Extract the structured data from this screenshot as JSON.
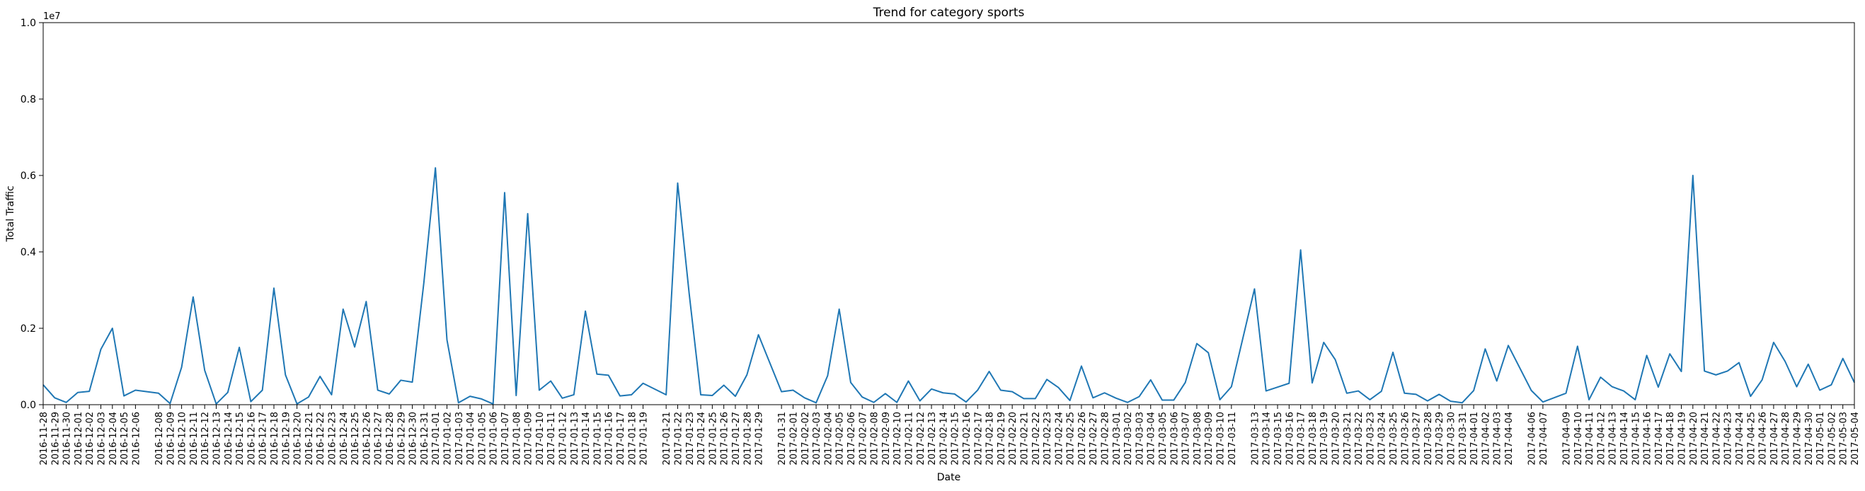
{
  "chart_data": {
    "type": "line",
    "title": "Trend for category sports",
    "xlabel": "Date",
    "ylabel": "Total Traffic",
    "y_multiplier_label": "1e7",
    "ylim": [
      0,
      10000000
    ],
    "y_ticks": [
      0,
      2000000,
      4000000,
      6000000,
      8000000,
      10000000
    ],
    "y_tick_labels": [
      "0.0",
      "0.2",
      "0.4",
      "0.6",
      "0.8",
      "1.0"
    ],
    "grid": false,
    "series": [
      {
        "color": "#1f77b4",
        "points": [
          [
            "2016-11-28",
            520000
          ],
          [
            "2016-11-29",
            180000
          ],
          [
            "2016-11-30",
            60000
          ],
          [
            "2016-12-01",
            320000
          ],
          [
            "2016-12-02",
            350000
          ],
          [
            "2016-12-03",
            1450000
          ],
          [
            "2016-12-04",
            2000000
          ],
          [
            "2016-12-05",
            230000
          ],
          [
            "2016-12-06",
            380000
          ],
          [
            "2016-12-08",
            300000
          ],
          [
            "2016-12-09",
            30000
          ],
          [
            "2016-12-10",
            980000
          ],
          [
            "2016-12-11",
            2820000
          ],
          [
            "2016-12-12",
            900000
          ],
          [
            "2016-12-13",
            20000
          ],
          [
            "2016-12-14",
            320000
          ],
          [
            "2016-12-15",
            1500000
          ],
          [
            "2016-12-16",
            80000
          ],
          [
            "2016-12-17",
            380000
          ],
          [
            "2016-12-18",
            3050000
          ],
          [
            "2016-12-19",
            780000
          ],
          [
            "2016-12-20",
            20000
          ],
          [
            "2016-12-21",
            200000
          ],
          [
            "2016-12-22",
            740000
          ],
          [
            "2016-12-23",
            260000
          ],
          [
            "2016-12-24",
            2500000
          ],
          [
            "2016-12-25",
            1510000
          ],
          [
            "2016-12-26",
            2700000
          ],
          [
            "2016-12-27",
            380000
          ],
          [
            "2016-12-28",
            280000
          ],
          [
            "2016-12-29",
            640000
          ],
          [
            "2016-12-30",
            590000
          ],
          [
            "2016-12-31",
            3200000
          ],
          [
            "2017-01-01",
            6200000
          ],
          [
            "2017-01-02",
            1700000
          ],
          [
            "2017-01-03",
            50000
          ],
          [
            "2017-01-04",
            220000
          ],
          [
            "2017-01-05",
            150000
          ],
          [
            "2017-01-06",
            20000
          ],
          [
            "2017-01-07",
            5550000
          ],
          [
            "2017-01-08",
            240000
          ],
          [
            "2017-01-09",
            5000000
          ],
          [
            "2017-01-10",
            380000
          ],
          [
            "2017-01-11",
            620000
          ],
          [
            "2017-01-12",
            170000
          ],
          [
            "2017-01-13",
            260000
          ],
          [
            "2017-01-14",
            2450000
          ],
          [
            "2017-01-15",
            800000
          ],
          [
            "2017-01-16",
            770000
          ],
          [
            "2017-01-17",
            230000
          ],
          [
            "2017-01-18",
            260000
          ],
          [
            "2017-01-19",
            560000
          ],
          [
            "2017-01-21",
            260000
          ],
          [
            "2017-01-22",
            5800000
          ],
          [
            "2017-01-23",
            2900000
          ],
          [
            "2017-01-24",
            260000
          ],
          [
            "2017-01-25",
            240000
          ],
          [
            "2017-01-26",
            510000
          ],
          [
            "2017-01-27",
            220000
          ],
          [
            "2017-01-28",
            780000
          ],
          [
            "2017-01-29",
            1830000
          ],
          [
            "2017-01-31",
            340000
          ],
          [
            "2017-02-01",
            380000
          ],
          [
            "2017-02-02",
            180000
          ],
          [
            "2017-02-03",
            50000
          ],
          [
            "2017-02-04",
            760000
          ],
          [
            "2017-02-05",
            2500000
          ],
          [
            "2017-02-06",
            580000
          ],
          [
            "2017-02-07",
            200000
          ],
          [
            "2017-02-08",
            60000
          ],
          [
            "2017-02-09",
            290000
          ],
          [
            "2017-02-10",
            60000
          ],
          [
            "2017-02-11",
            620000
          ],
          [
            "2017-02-12",
            100000
          ],
          [
            "2017-02-13",
            410000
          ],
          [
            "2017-02-14",
            310000
          ],
          [
            "2017-02-15",
            280000
          ],
          [
            "2017-02-16",
            70000
          ],
          [
            "2017-02-17",
            380000
          ],
          [
            "2017-02-18",
            870000
          ],
          [
            "2017-02-19",
            380000
          ],
          [
            "2017-02-20",
            340000
          ],
          [
            "2017-02-21",
            160000
          ],
          [
            "2017-02-22",
            160000
          ],
          [
            "2017-02-23",
            660000
          ],
          [
            "2017-02-24",
            450000
          ],
          [
            "2017-02-25",
            110000
          ],
          [
            "2017-02-26",
            1010000
          ],
          [
            "2017-02-27",
            180000
          ],
          [
            "2017-02-28",
            310000
          ],
          [
            "2017-03-01",
            170000
          ],
          [
            "2017-03-02",
            60000
          ],
          [
            "2017-03-03",
            210000
          ],
          [
            "2017-03-04",
            650000
          ],
          [
            "2017-03-05",
            120000
          ],
          [
            "2017-03-06",
            120000
          ],
          [
            "2017-03-07",
            580000
          ],
          [
            "2017-03-08",
            1600000
          ],
          [
            "2017-03-09",
            1360000
          ],
          [
            "2017-03-10",
            130000
          ],
          [
            "2017-03-11",
            470000
          ],
          [
            "2017-03-13",
            3030000
          ],
          [
            "2017-03-14",
            360000
          ],
          [
            "2017-03-15",
            460000
          ],
          [
            "2017-03-16",
            560000
          ],
          [
            "2017-03-17",
            4050000
          ],
          [
            "2017-03-18",
            570000
          ],
          [
            "2017-03-19",
            1630000
          ],
          [
            "2017-03-20",
            1180000
          ],
          [
            "2017-03-21",
            300000
          ],
          [
            "2017-03-22",
            360000
          ],
          [
            "2017-03-23",
            130000
          ],
          [
            "2017-03-24",
            350000
          ],
          [
            "2017-03-25",
            1370000
          ],
          [
            "2017-03-26",
            300000
          ],
          [
            "2017-03-27",
            270000
          ],
          [
            "2017-03-28",
            100000
          ],
          [
            "2017-03-29",
            270000
          ],
          [
            "2017-03-30",
            90000
          ],
          [
            "2017-03-31",
            50000
          ],
          [
            "2017-04-01",
            370000
          ],
          [
            "2017-04-02",
            1460000
          ],
          [
            "2017-04-03",
            620000
          ],
          [
            "2017-04-04",
            1550000
          ],
          [
            "2017-04-06",
            370000
          ],
          [
            "2017-04-07",
            70000
          ],
          [
            "2017-04-09",
            300000
          ],
          [
            "2017-04-10",
            1530000
          ],
          [
            "2017-04-11",
            130000
          ],
          [
            "2017-04-12",
            720000
          ],
          [
            "2017-04-13",
            470000
          ],
          [
            "2017-04-14",
            360000
          ],
          [
            "2017-04-15",
            130000
          ],
          [
            "2017-04-16",
            1290000
          ],
          [
            "2017-04-17",
            460000
          ],
          [
            "2017-04-18",
            1330000
          ],
          [
            "2017-04-19",
            870000
          ],
          [
            "2017-04-20",
            6000000
          ],
          [
            "2017-04-21",
            880000
          ],
          [
            "2017-04-22",
            780000
          ],
          [
            "2017-04-23",
            880000
          ],
          [
            "2017-04-24",
            1100000
          ],
          [
            "2017-04-25",
            220000
          ],
          [
            "2017-04-26",
            650000
          ],
          [
            "2017-04-27",
            1630000
          ],
          [
            "2017-04-28",
            1130000
          ],
          [
            "2017-04-29",
            470000
          ],
          [
            "2017-04-30",
            1060000
          ],
          [
            "2017-05-01",
            380000
          ],
          [
            "2017-05-02",
            520000
          ],
          [
            "2017-05-03",
            1210000
          ],
          [
            "2017-05-04",
            580000
          ]
        ]
      }
    ]
  }
}
